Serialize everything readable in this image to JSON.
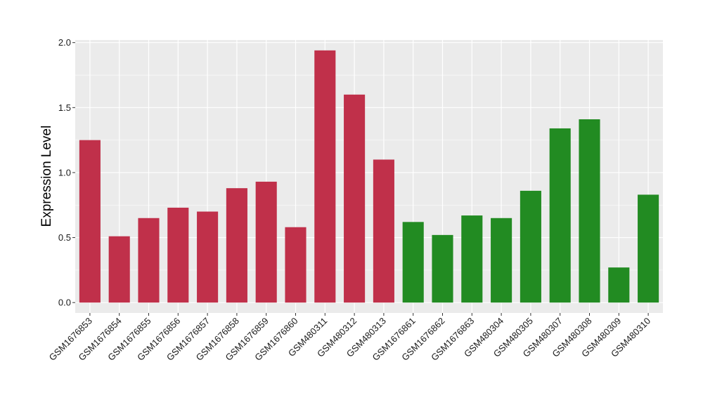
{
  "chart_data": {
    "type": "bar",
    "title": "",
    "xlabel": "",
    "ylabel": "Expression Level",
    "ylim": [
      -0.08,
      2.02
    ],
    "yticks": [
      0.0,
      0.5,
      1.0,
      1.5,
      2.0
    ],
    "ytick_labels": [
      "0.0",
      "0.5",
      "1.0",
      "1.5",
      "2.0"
    ],
    "grid": true,
    "legend": "none",
    "colors": {
      "red": "#c0304a",
      "green": "#228b22",
      "panel": "#ebebeb",
      "grid": "#ffffff"
    },
    "categories": [
      "GSM1676853",
      "GSM1676854",
      "GSM1676855",
      "GSM1676856",
      "GSM1676857",
      "GSM1676858",
      "GSM1676859",
      "GSM1676860",
      "GSM480311",
      "GSM480312",
      "GSM480313",
      "GSM1676861",
      "GSM1676862",
      "GSM1676863",
      "GSM480304",
      "GSM480305",
      "GSM480307",
      "GSM480308",
      "GSM480309",
      "GSM480310"
    ],
    "values": [
      1.25,
      0.51,
      0.65,
      0.73,
      0.7,
      0.88,
      0.93,
      0.58,
      1.94,
      1.6,
      1.1,
      0.62,
      0.52,
      0.67,
      0.65,
      0.86,
      1.34,
      1.41,
      0.27,
      0.83
    ],
    "bar_colors": [
      "red",
      "red",
      "red",
      "red",
      "red",
      "red",
      "red",
      "red",
      "red",
      "red",
      "red",
      "green",
      "green",
      "green",
      "green",
      "green",
      "green",
      "green",
      "green",
      "green"
    ]
  }
}
